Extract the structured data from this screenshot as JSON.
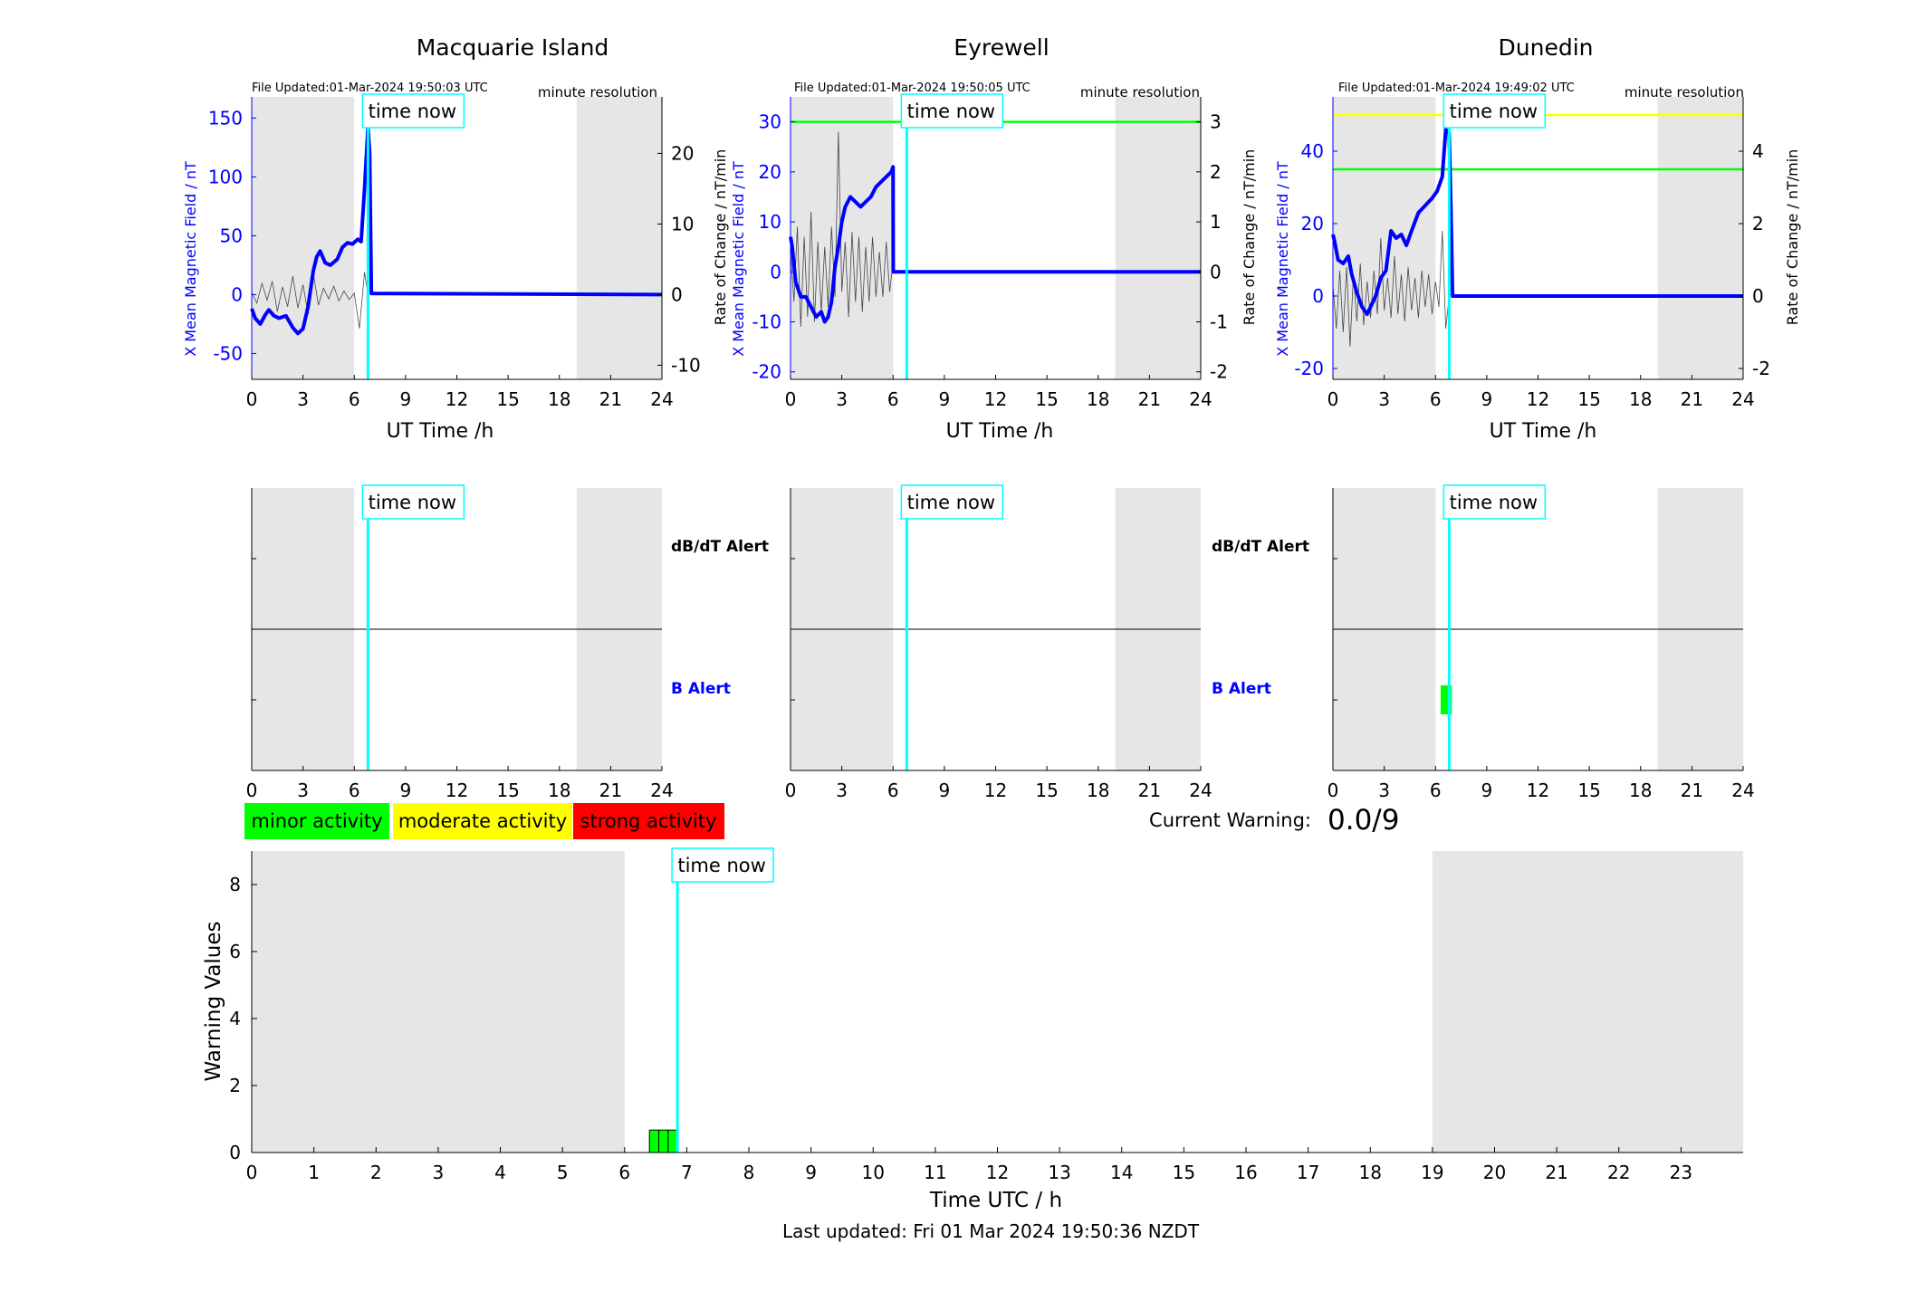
{
  "figure": {
    "last_updated": "Last updated: Fri 01 Mar 2024 19:50:36 NZDT",
    "current_warning_label": "Current Warning:",
    "current_warning_value": "0.0/9",
    "time_now_label": "time now",
    "legend": [
      {
        "label": "minor activity",
        "color": "#00ff00"
      },
      {
        "label": "moderate activity",
        "color": "#ffff00"
      },
      {
        "label": "strong activity",
        "color": "#ff0000"
      }
    ],
    "colors": {
      "night_shading": "#e6e6e6",
      "time_now_line": "#00ffff",
      "field_line": "#0000ff",
      "rate_line": "#000000",
      "alert_minor": "#00ff00",
      "alert_moderate": "#ffff00"
    }
  },
  "chart_data": [
    {
      "type": "line",
      "station": "Macquarie Island",
      "title": "Macquarie Island",
      "file_updated": "File Updated:01-Mar-2024 19:50:03 UTC",
      "resolution": "minute resolution",
      "xlabel": "UT Time /h",
      "ylabel_left": "X Mean Magnetic Field / nT",
      "ylabel_right": "Rate of Change / nT/min",
      "xlim": [
        0,
        24
      ],
      "xticks": [
        0,
        3,
        6,
        9,
        12,
        15,
        18,
        21,
        24
      ],
      "ylim_left": [
        -72,
        168
      ],
      "yticks_left": [
        -50,
        0,
        50,
        100,
        150
      ],
      "ylim_right": [
        -12,
        28
      ],
      "yticks_right": [
        -10,
        0,
        10,
        20
      ],
      "night_bands": [
        [
          0,
          6
        ],
        [
          19,
          24
        ]
      ],
      "time_now": 6.8,
      "thresholds": [],
      "series": [
        {
          "name": "X Mean Magnetic Field",
          "axis": "left",
          "x": [
            0,
            0.2,
            0.5,
            0.8,
            1.0,
            1.3,
            1.6,
            2.0,
            2.4,
            2.7,
            3.0,
            3.3,
            3.6,
            3.8,
            4.0,
            4.3,
            4.6,
            5.0,
            5.3,
            5.6,
            5.9,
            6.2,
            6.4,
            6.6,
            6.8,
            6.9,
            7.0,
            24
          ],
          "values": [
            -12,
            -20,
            -25,
            -17,
            -13,
            -18,
            -20,
            -18,
            -28,
            -33,
            -29,
            -10,
            20,
            32,
            37,
            27,
            25,
            30,
            40,
            44,
            43,
            47,
            45,
            90,
            142,
            120,
            1,
            0
          ]
        },
        {
          "name": "Rate of Change",
          "axis": "right",
          "x": [
            0,
            0.3,
            0.6,
            0.9,
            1.2,
            1.5,
            1.8,
            2.1,
            2.4,
            2.7,
            3.0,
            3.3,
            3.6,
            3.9,
            4.2,
            4.5,
            4.8,
            5.1,
            5.4,
            5.7,
            6.0,
            6.3,
            6.6,
            6.8
          ],
          "values": [
            0.3,
            -1.2,
            1.6,
            -0.8,
            1.9,
            -2.4,
            1.1,
            -1.7,
            2.6,
            -1.9,
            1.4,
            -2.8,
            3.1,
            -1.5,
            0.9,
            -0.6,
            1.2,
            -0.9,
            0.5,
            -0.7,
            0.2,
            -4.8,
            3.2,
            0.0
          ]
        }
      ]
    },
    {
      "type": "line",
      "station": "Eyrewell",
      "title": "Eyrewell",
      "file_updated": "File Updated:01-Mar-2024 19:50:05 UTC",
      "resolution": "minute resolution",
      "xlabel": "UT Time /h",
      "ylabel_left": "X Mean Magnetic Field / nT",
      "ylabel_right": "Rate of Change / nT/min",
      "xlim": [
        0,
        24
      ],
      "xticks": [
        0,
        3,
        6,
        9,
        12,
        15,
        18,
        21,
        24
      ],
      "ylim_left": [
        -21.5,
        35
      ],
      "yticks_left": [
        -20,
        -10,
        0,
        10,
        20,
        30
      ],
      "ylim_right": [
        -2.15,
        3.5
      ],
      "yticks_right": [
        -2,
        -1,
        0,
        1,
        2,
        3
      ],
      "night_bands": [
        [
          0,
          6
        ],
        [
          19,
          24
        ]
      ],
      "time_now": 6.8,
      "thresholds": [
        {
          "axis": "right",
          "value": 3,
          "color": "#00ff00"
        }
      ],
      "series": [
        {
          "name": "X Mean Magnetic Field",
          "axis": "left",
          "x": [
            0,
            0.1,
            0.3,
            0.6,
            0.9,
            1.2,
            1.5,
            1.8,
            2.0,
            2.2,
            2.4,
            2.6,
            2.8,
            3.0,
            3.2,
            3.5,
            3.8,
            4.1,
            4.4,
            4.7,
            5.0,
            5.3,
            5.6,
            5.9,
            6.0,
            6.01,
            24
          ],
          "values": [
            7,
            5,
            -2,
            -5,
            -5,
            -7,
            -9,
            -8,
            -10,
            -9,
            -6,
            1,
            5,
            10,
            13,
            15,
            14,
            13,
            14,
            15,
            17,
            18,
            19,
            20,
            21,
            0,
            0
          ]
        },
        {
          "name": "Rate of Change",
          "axis": "right",
          "x": [
            0,
            0.2,
            0.4,
            0.6,
            0.8,
            1.0,
            1.2,
            1.4,
            1.6,
            1.8,
            2.0,
            2.2,
            2.4,
            2.6,
            2.8,
            3.0,
            3.2,
            3.4,
            3.6,
            3.8,
            4.0,
            4.2,
            4.4,
            4.6,
            4.8,
            5.0,
            5.2,
            5.4,
            5.6,
            5.8,
            6.0
          ],
          "values": [
            0.4,
            -0.6,
            0.9,
            -1.1,
            0.7,
            -0.9,
            1.2,
            -1.0,
            0.6,
            -0.8,
            0.5,
            -0.7,
            0.9,
            -0.5,
            2.8,
            -0.4,
            0.6,
            -0.9,
            0.8,
            -0.6,
            0.7,
            -0.8,
            0.5,
            -0.6,
            0.7,
            -0.5,
            0.4,
            -0.5,
            0.6,
            -0.4,
            0.2
          ]
        }
      ]
    },
    {
      "type": "line",
      "station": "Dunedin",
      "title": "Dunedin",
      "file_updated": "File Updated:01-Mar-2024 19:49:02 UTC",
      "resolution": "minute resolution",
      "xlabel": "UT Time /h",
      "ylabel_left": "X Mean Magnetic Field / nT",
      "ylabel_right": "Rate of Change / nT/min",
      "xlim": [
        0,
        24
      ],
      "xticks": [
        0,
        3,
        6,
        9,
        12,
        15,
        18,
        21,
        24
      ],
      "ylim_left": [
        -23,
        55
      ],
      "yticks_left": [
        -20,
        0,
        20,
        40
      ],
      "ylim_right": [
        -2.3,
        5.5
      ],
      "yticks_right": [
        -2,
        0,
        2,
        4
      ],
      "night_bands": [
        [
          0,
          6
        ],
        [
          19,
          24
        ]
      ],
      "time_now": 6.8,
      "thresholds": [
        {
          "axis": "right",
          "value": 5,
          "color": "#ffff00"
        },
        {
          "axis": "right",
          "value": 3.5,
          "color": "#00ff00"
        }
      ],
      "series": [
        {
          "name": "X Mean Magnetic Field",
          "axis": "left",
          "x": [
            0,
            0.1,
            0.3,
            0.6,
            0.9,
            1.1,
            1.4,
            1.7,
            2.0,
            2.2,
            2.5,
            2.8,
            3.1,
            3.4,
            3.7,
            4.0,
            4.3,
            4.6,
            5.0,
            5.4,
            5.8,
            6.1,
            6.4,
            6.6,
            6.8,
            6.9,
            7.0,
            24
          ],
          "values": [
            17,
            15,
            10,
            9,
            11,
            6,
            1,
            -3,
            -5,
            -3,
            0,
            5,
            7,
            18,
            16,
            17,
            14,
            18,
            23,
            25,
            27,
            29,
            33,
            46,
            45,
            25,
            0,
            0
          ]
        },
        {
          "name": "Rate of Change",
          "axis": "right",
          "x": [
            0,
            0.2,
            0.4,
            0.6,
            0.8,
            1.0,
            1.2,
            1.4,
            1.6,
            1.8,
            2.0,
            2.2,
            2.4,
            2.6,
            2.8,
            3.0,
            3.2,
            3.4,
            3.6,
            3.8,
            4.0,
            4.2,
            4.4,
            4.6,
            4.8,
            5.0,
            5.2,
            5.4,
            5.6,
            5.8,
            6.0,
            6.2,
            6.4,
            6.6,
            6.8
          ],
          "values": [
            0.3,
            -0.9,
            0.7,
            -1.0,
            0.8,
            -1.4,
            0.6,
            -0.7,
            0.9,
            -0.8,
            0.4,
            -0.6,
            0.7,
            -0.5,
            1.6,
            -0.4,
            0.5,
            -0.6,
            1.1,
            -0.5,
            0.6,
            -0.7,
            0.8,
            -0.4,
            0.5,
            -0.6,
            0.7,
            -0.3,
            0.6,
            -0.5,
            0.4,
            -0.3,
            1.8,
            -0.9,
            0.0
          ]
        }
      ]
    },
    {
      "type": "bar",
      "station": "Macquarie Island",
      "labels": [
        "dB/dT Alert",
        "B Alert"
      ],
      "xlim": [
        0,
        24
      ],
      "xticks": [
        0,
        3,
        6,
        9,
        12,
        15,
        18,
        21,
        24
      ],
      "night_bands": [
        [
          0,
          6
        ],
        [
          19,
          24
        ]
      ],
      "time_now": 6.8,
      "alerts": []
    },
    {
      "type": "bar",
      "station": "Eyrewell",
      "labels": [
        "dB/dT Alert",
        "B Alert"
      ],
      "xlim": [
        0,
        24
      ],
      "xticks": [
        0,
        3,
        6,
        9,
        12,
        15,
        18,
        21,
        24
      ],
      "night_bands": [
        [
          0,
          6
        ],
        [
          19,
          24
        ]
      ],
      "time_now": 6.8,
      "alerts": []
    },
    {
      "type": "bar",
      "station": "Dunedin",
      "labels": [
        "dB/dT Alert",
        "B Alert"
      ],
      "xlim": [
        0,
        24
      ],
      "xticks": [
        0,
        3,
        6,
        9,
        12,
        15,
        18,
        21,
        24
      ],
      "night_bands": [
        [
          0,
          6
        ],
        [
          19,
          24
        ]
      ],
      "time_now": 6.8,
      "alerts": [
        {
          "channel": "B Alert",
          "start": 6.3,
          "end": 6.95,
          "level": "minor"
        }
      ]
    },
    {
      "type": "bar",
      "title": "",
      "xlabel": "Time UTC / h",
      "ylabel": "Warning Values",
      "xlim": [
        0,
        24
      ],
      "xticks": [
        0,
        1,
        2,
        3,
        4,
        5,
        6,
        7,
        8,
        9,
        10,
        11,
        12,
        13,
        14,
        15,
        16,
        17,
        18,
        19,
        20,
        21,
        22,
        23
      ],
      "ylim": [
        0,
        9
      ],
      "yticks": [
        0,
        2,
        4,
        6,
        8
      ],
      "night_bands": [
        [
          0,
          6
        ],
        [
          19,
          24
        ]
      ],
      "time_now": 6.85,
      "bar_width": 0.15,
      "x": [
        6.4,
        6.55,
        6.7
      ],
      "values": [
        0.67,
        0.67,
        0.67
      ],
      "bar_color": "#00ff00"
    }
  ]
}
